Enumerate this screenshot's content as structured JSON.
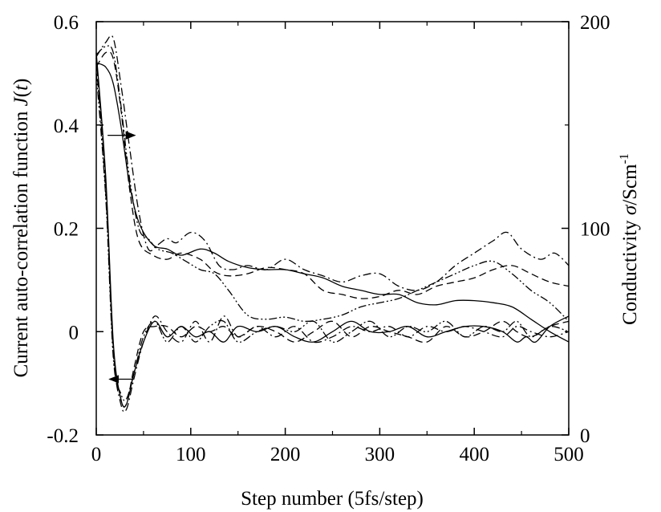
{
  "chart_data": {
    "type": "line",
    "xlabel": "Step number (5fs/step)",
    "ylabel_left": "Current auto-correlation function J(t)",
    "ylabel_right": "Conductivity σ/Scm-1",
    "xlim": [
      0,
      500
    ],
    "ylim_left": [
      -0.2,
      0.6
    ],
    "ylim_right": [
      0,
      200
    ],
    "x_ticks": [
      "0",
      "100",
      "200",
      "300",
      "400",
      "500"
    ],
    "y_ticks_left": [
      "-0.2",
      "0",
      "0.2",
      "0.4",
      "0.6"
    ],
    "y_ticks_right": [
      "0",
      "100",
      "200"
    ],
    "grid": false,
    "legend": "none",
    "annotations": [
      {
        "type": "arrow",
        "direction": "right",
        "meaning": "curves read on right axis (conductivity)"
      },
      {
        "type": "arrow",
        "direction": "left",
        "meaning": "curves read on left axis (J(t))"
      }
    ],
    "series": [
      {
        "axis": "left",
        "style": "solid",
        "x": [
          0,
          10,
          18,
          26,
          32,
          40,
          50,
          62,
          75,
          90,
          105,
          120,
          135,
          150,
          170,
          190,
          210,
          230,
          250,
          270,
          290,
          310,
          330,
          350,
          370,
          390,
          410,
          430,
          445,
          455,
          465,
          480,
          500
        ],
        "y": [
          0.54,
          0.3,
          -0.02,
          -0.13,
          -0.14,
          -0.08,
          -0.02,
          0.02,
          -0.01,
          0.01,
          -0.01,
          0.0,
          -0.02,
          0.01,
          0.0,
          0.01,
          -0.01,
          -0.02,
          0.0,
          0.02,
          0.0,
          0.0,
          0.01,
          -0.01,
          0.0,
          0.01,
          0.01,
          0.0,
          -0.02,
          -0.01,
          -0.02,
          0.01,
          0.03
        ]
      },
      {
        "axis": "left",
        "style": "dash",
        "x": [
          0,
          10,
          18,
          26,
          32,
          40,
          50,
          62,
          75,
          90,
          105,
          120,
          135,
          150,
          170,
          190,
          210,
          230,
          250,
          270,
          290,
          310,
          330,
          350,
          370,
          390,
          410,
          430,
          445,
          460,
          480,
          500
        ],
        "y": [
          0.53,
          0.29,
          -0.03,
          -0.13,
          -0.14,
          -0.07,
          0.0,
          0.01,
          0.01,
          -0.01,
          0.01,
          0.0,
          0.01,
          -0.01,
          0.01,
          0.0,
          -0.02,
          0.0,
          0.02,
          -0.01,
          0.01,
          0.0,
          -0.01,
          -0.02,
          0.01,
          -0.01,
          0.0,
          0.02,
          0.0,
          -0.01,
          0.01,
          0.02
        ]
      },
      {
        "axis": "left",
        "style": "dashdot",
        "x": [
          0,
          10,
          18,
          26,
          32,
          40,
          50,
          62,
          75,
          90,
          105,
          120,
          135,
          150,
          170,
          190,
          210,
          230,
          250,
          270,
          290,
          310,
          330,
          350,
          370,
          390,
          410,
          430,
          445,
          460,
          480,
          500
        ],
        "y": [
          0.52,
          0.27,
          -0.04,
          -0.14,
          -0.15,
          -0.09,
          -0.02,
          0.03,
          0.0,
          -0.02,
          0.02,
          -0.02,
          0.03,
          -0.01,
          0.01,
          -0.01,
          0.01,
          -0.02,
          -0.01,
          0.01,
          0.0,
          0.01,
          -0.01,
          0.01,
          0.0,
          0.01,
          0.0,
          -0.01,
          0.01,
          0.0,
          -0.01,
          0.0
        ]
      },
      {
        "axis": "left",
        "style": "dashdotdot",
        "x": [
          0,
          10,
          18,
          26,
          32,
          40,
          50,
          62,
          75,
          90,
          105,
          120,
          135,
          150,
          170,
          190,
          210,
          230,
          250,
          270,
          290,
          310,
          330,
          350,
          370,
          390,
          410,
          430,
          445,
          460,
          480,
          500
        ],
        "y": [
          0.5,
          0.26,
          -0.05,
          -0.12,
          -0.13,
          -0.08,
          -0.01,
          0.02,
          -0.02,
          0.01,
          -0.02,
          0.01,
          0.02,
          -0.02,
          0.0,
          0.01,
          0.0,
          0.02,
          -0.02,
          0.0,
          0.02,
          -0.01,
          0.01,
          0.0,
          0.02,
          -0.01,
          0.01,
          0.0,
          0.02,
          -0.01,
          0.01,
          0.0
        ]
      },
      {
        "axis": "right",
        "style": "solid",
        "x": [
          0,
          10,
          18,
          26,
          35,
          45,
          60,
          75,
          90,
          110,
          125,
          140,
          160,
          180,
          200,
          220,
          240,
          260,
          280,
          300,
          320,
          340,
          360,
          380,
          400,
          420,
          440,
          460,
          480,
          500
        ],
        "y": [
          180,
          178,
          170,
          150,
          122,
          103,
          92,
          90,
          87,
          90,
          88,
          84,
          81,
          80,
          80,
          78,
          76,
          72,
          70,
          68,
          68,
          64,
          63,
          65,
          65,
          64,
          62,
          56,
          50,
          45
        ]
      },
      {
        "axis": "right",
        "style": "dash",
        "x": [
          0,
          10,
          18,
          26,
          35,
          45,
          60,
          75,
          90,
          110,
          125,
          140,
          160,
          180,
          200,
          220,
          240,
          260,
          280,
          300,
          320,
          340,
          360,
          380,
          400,
          420,
          440,
          460,
          480,
          500
        ],
        "y": [
          178,
          185,
          182,
          158,
          120,
          94,
          87,
          85,
          88,
          85,
          79,
          77,
          78,
          81,
          80,
          78,
          70,
          68,
          66,
          67,
          70,
          68,
          72,
          74,
          76,
          80,
          82,
          78,
          74,
          72
        ]
      },
      {
        "axis": "right",
        "style": "dashdot",
        "x": [
          0,
          10,
          18,
          26,
          35,
          45,
          55,
          65,
          75,
          85,
          100,
          115,
          130,
          145,
          160,
          180,
          200,
          220,
          240,
          260,
          280,
          300,
          320,
          340,
          360,
          380,
          400,
          420,
          435,
          450,
          470,
          485,
          500
        ],
        "y": [
          183,
          190,
          192,
          170,
          140,
          108,
          90,
          92,
          95,
          93,
          98,
          94,
          82,
          80,
          82,
          80,
          85,
          80,
          77,
          74,
          77,
          78,
          72,
          70,
          74,
          82,
          88,
          94,
          98,
          90,
          85,
          88,
          82
        ]
      },
      {
        "axis": "right",
        "style": "dashdotdot",
        "x": [
          0,
          10,
          18,
          26,
          35,
          45,
          55,
          65,
          80,
          95,
          110,
          125,
          140,
          160,
          180,
          200,
          220,
          240,
          260,
          280,
          300,
          320,
          340,
          360,
          380,
          400,
          420,
          440,
          460,
          480,
          500
        ],
        "y": [
          184,
          188,
          185,
          160,
          125,
          100,
          95,
          90,
          88,
          84,
          80,
          78,
          70,
          58,
          56,
          57,
          55,
          56,
          58,
          62,
          64,
          66,
          70,
          74,
          78,
          82,
          84,
          78,
          70,
          64,
          55
        ]
      }
    ]
  }
}
